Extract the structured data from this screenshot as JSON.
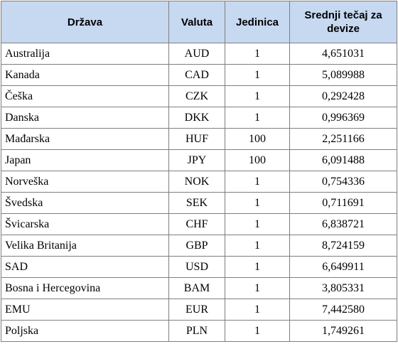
{
  "table": {
    "headers": [
      "Država",
      "Valuta",
      "Jedinica",
      "Srednji tečaj za devize"
    ],
    "rows": [
      {
        "country": "Australija",
        "currency": "AUD",
        "unit": "1",
        "rate": "4,651031"
      },
      {
        "country": "Kanada",
        "currency": "CAD",
        "unit": "1",
        "rate": "5,089988"
      },
      {
        "country": "Češka",
        "currency": "CZK",
        "unit": "1",
        "rate": "0,292428"
      },
      {
        "country": "Danska",
        "currency": "DKK",
        "unit": "1",
        "rate": "0,996369"
      },
      {
        "country": "Mađarska",
        "currency": "HUF",
        "unit": "100",
        "rate": "2,251166"
      },
      {
        "country": "Japan",
        "currency": "JPY",
        "unit": "100",
        "rate": "6,091488"
      },
      {
        "country": "Norveška",
        "currency": "NOK",
        "unit": "1",
        "rate": "0,754336"
      },
      {
        "country": "Švedska",
        "currency": "SEK",
        "unit": "1",
        "rate": "0,711691"
      },
      {
        "country": "Švicarska",
        "currency": "CHF",
        "unit": "1",
        "rate": "6,838721"
      },
      {
        "country": "Velika Britanija",
        "currency": "GBP",
        "unit": "1",
        "rate": "8,724159"
      },
      {
        "country": "SAD",
        "currency": "USD",
        "unit": "1",
        "rate": "6,649911"
      },
      {
        "country": "Bosna  i Hercegovina",
        "currency": "BAM",
        "unit": "1",
        "rate": "3,805331"
      },
      {
        "country": "EMU",
        "currency": "EUR",
        "unit": "1",
        "rate": "7,442580"
      },
      {
        "country": "Poljska",
        "currency": "PLN",
        "unit": "1",
        "rate": "1,749261"
      }
    ]
  },
  "colors": {
    "header_background": "#c6d9f1",
    "border": "#7f7f7f"
  }
}
